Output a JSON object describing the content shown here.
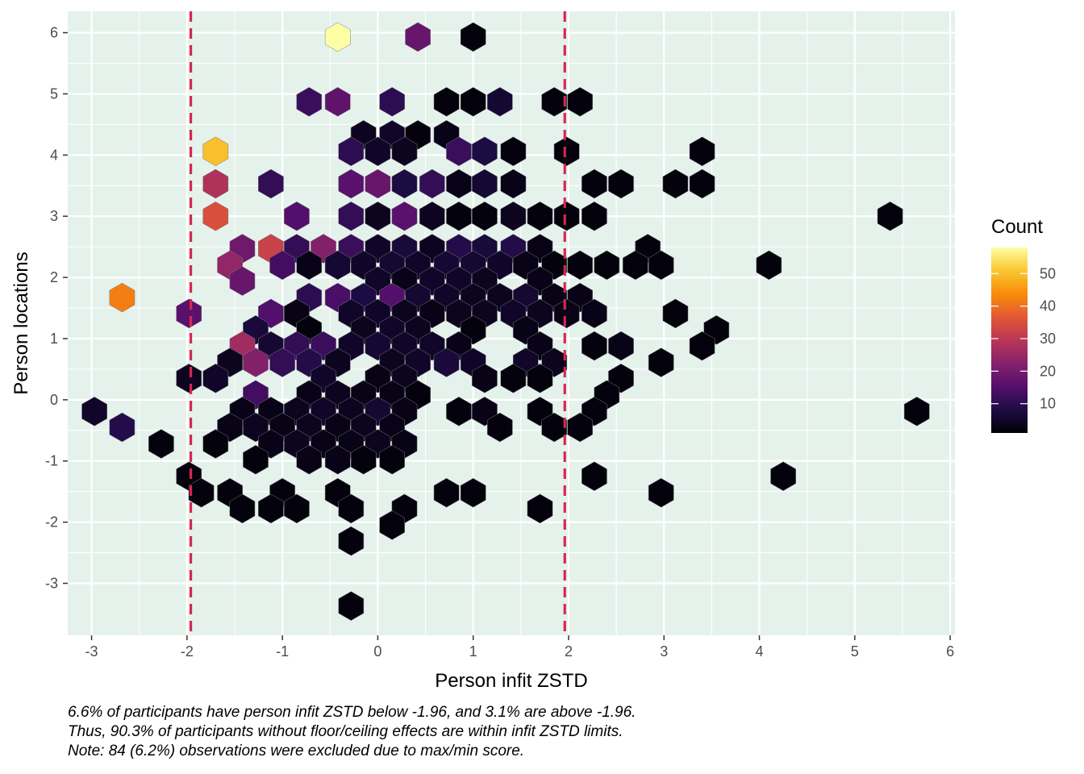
{
  "chart_data": {
    "type": "hexbin",
    "xlabel": "Person infit ZSTD",
    "ylabel": "Person locations",
    "xlim": [
      -3.25,
      6.05
    ],
    "ylim": [
      -3.85,
      6.35
    ],
    "x_ticks": [
      -3,
      -2,
      -1,
      0,
      1,
      2,
      3,
      4,
      5,
      6
    ],
    "y_ticks": [
      -3,
      -2,
      -1,
      0,
      1,
      2,
      3,
      4,
      5,
      6
    ],
    "grid": true,
    "panel_background": "#e5f2ec",
    "reference_lines": {
      "x": [
        -1.96,
        1.96
      ],
      "color": "#d7264f",
      "style": "dashed"
    },
    "legend": {
      "title": "Count",
      "position": "right",
      "min": 1,
      "max": 58,
      "breaks": [
        10,
        20,
        30,
        40,
        50
      ]
    },
    "colormap": "inferno",
    "hexes": [
      {
        "x": -0.42,
        "y": 5.93,
        "count": 58
      },
      {
        "x": 0.42,
        "y": 5.93,
        "count": 18
      },
      {
        "x": 1.0,
        "y": 5.93,
        "count": 2
      },
      {
        "x": -0.72,
        "y": 4.87,
        "count": 12
      },
      {
        "x": -0.42,
        "y": 4.87,
        "count": 17
      },
      {
        "x": 0.15,
        "y": 4.87,
        "count": 10
      },
      {
        "x": 0.72,
        "y": 4.87,
        "count": 2
      },
      {
        "x": 1.0,
        "y": 4.87,
        "count": 2
      },
      {
        "x": 1.28,
        "y": 4.87,
        "count": 6
      },
      {
        "x": 1.85,
        "y": 4.87,
        "count": 2
      },
      {
        "x": 2.12,
        "y": 4.87,
        "count": 2
      },
      {
        "x": -0.15,
        "y": 4.33,
        "count": 4
      },
      {
        "x": 0.15,
        "y": 4.33,
        "count": 5
      },
      {
        "x": 0.42,
        "y": 4.33,
        "count": 2
      },
      {
        "x": 0.72,
        "y": 4.33,
        "count": 3
      },
      {
        "x": -1.7,
        "y": 4.06,
        "count": 50
      },
      {
        "x": -0.28,
        "y": 4.06,
        "count": 10
      },
      {
        "x": 0.0,
        "y": 4.06,
        "count": 5
      },
      {
        "x": 0.28,
        "y": 4.06,
        "count": 4
      },
      {
        "x": 0.85,
        "y": 4.06,
        "count": 12
      },
      {
        "x": 1.12,
        "y": 4.06,
        "count": 8
      },
      {
        "x": 1.42,
        "y": 4.06,
        "count": 2
      },
      {
        "x": 1.98,
        "y": 4.06,
        "count": 2
      },
      {
        "x": 3.4,
        "y": 4.06,
        "count": 2
      },
      {
        "x": -1.7,
        "y": 3.53,
        "count": 28
      },
      {
        "x": -1.12,
        "y": 3.53,
        "count": 11
      },
      {
        "x": -0.28,
        "y": 3.53,
        "count": 16
      },
      {
        "x": 0.0,
        "y": 3.53,
        "count": 18
      },
      {
        "x": 0.28,
        "y": 3.53,
        "count": 8
      },
      {
        "x": 0.57,
        "y": 3.53,
        "count": 11
      },
      {
        "x": 0.85,
        "y": 3.53,
        "count": 3
      },
      {
        "x": 1.12,
        "y": 3.53,
        "count": 6
      },
      {
        "x": 1.42,
        "y": 3.53,
        "count": 3
      },
      {
        "x": 2.27,
        "y": 3.53,
        "count": 2
      },
      {
        "x": 2.55,
        "y": 3.53,
        "count": 2
      },
      {
        "x": 3.12,
        "y": 3.53,
        "count": 2
      },
      {
        "x": 3.4,
        "y": 3.53,
        "count": 2
      },
      {
        "x": -1.7,
        "y": 3.0,
        "count": 35
      },
      {
        "x": -0.85,
        "y": 3.0,
        "count": 15
      },
      {
        "x": -0.28,
        "y": 3.0,
        "count": 11
      },
      {
        "x": 0.0,
        "y": 3.0,
        "count": 4
      },
      {
        "x": 0.28,
        "y": 3.0,
        "count": 16
      },
      {
        "x": 0.57,
        "y": 3.0,
        "count": 4
      },
      {
        "x": 0.85,
        "y": 3.0,
        "count": 2
      },
      {
        "x": 1.12,
        "y": 3.0,
        "count": 2
      },
      {
        "x": 1.42,
        "y": 3.0,
        "count": 4
      },
      {
        "x": 1.7,
        "y": 3.0,
        "count": 2
      },
      {
        "x": 1.98,
        "y": 3.0,
        "count": 2
      },
      {
        "x": 2.27,
        "y": 3.0,
        "count": 2
      },
      {
        "x": 5.37,
        "y": 3.0,
        "count": 2
      },
      {
        "x": -1.42,
        "y": 2.47,
        "count": 19
      },
      {
        "x": -1.12,
        "y": 2.47,
        "count": 32
      },
      {
        "x": -0.85,
        "y": 2.47,
        "count": 11
      },
      {
        "x": -0.57,
        "y": 2.47,
        "count": 22
      },
      {
        "x": -0.28,
        "y": 2.47,
        "count": 12
      },
      {
        "x": 0.0,
        "y": 2.47,
        "count": 5
      },
      {
        "x": 0.28,
        "y": 2.47,
        "count": 7
      },
      {
        "x": 0.57,
        "y": 2.47,
        "count": 4
      },
      {
        "x": 0.85,
        "y": 2.47,
        "count": 9
      },
      {
        "x": 1.12,
        "y": 2.47,
        "count": 7
      },
      {
        "x": 1.42,
        "y": 2.47,
        "count": 9
      },
      {
        "x": 1.7,
        "y": 2.47,
        "count": 3
      },
      {
        "x": 2.83,
        "y": 2.47,
        "count": 2
      },
      {
        "x": -1.55,
        "y": 2.2,
        "count": 24
      },
      {
        "x": -1.0,
        "y": 2.2,
        "count": 13
      },
      {
        "x": -0.72,
        "y": 2.2,
        "count": 3
      },
      {
        "x": -0.42,
        "y": 2.2,
        "count": 6
      },
      {
        "x": -0.15,
        "y": 2.2,
        "count": 5
      },
      {
        "x": 0.15,
        "y": 2.2,
        "count": 6
      },
      {
        "x": 0.42,
        "y": 2.2,
        "count": 5
      },
      {
        "x": 0.72,
        "y": 2.2,
        "count": 6
      },
      {
        "x": 1.0,
        "y": 2.2,
        "count": 6
      },
      {
        "x": 1.28,
        "y": 2.2,
        "count": 5
      },
      {
        "x": 1.55,
        "y": 2.2,
        "count": 3
      },
      {
        "x": 1.85,
        "y": 2.2,
        "count": 2
      },
      {
        "x": 2.12,
        "y": 2.2,
        "count": 2
      },
      {
        "x": 2.4,
        "y": 2.2,
        "count": 2
      },
      {
        "x": 2.7,
        "y": 2.2,
        "count": 2
      },
      {
        "x": 2.97,
        "y": 2.2,
        "count": 2
      },
      {
        "x": 4.1,
        "y": 2.2,
        "count": 2
      },
      {
        "x": -1.42,
        "y": 1.94,
        "count": 18
      },
      {
        "x": 0.0,
        "y": 1.94,
        "count": 5
      },
      {
        "x": 0.28,
        "y": 1.94,
        "count": 3
      },
      {
        "x": 0.57,
        "y": 1.94,
        "count": 5
      },
      {
        "x": 0.85,
        "y": 1.94,
        "count": 5
      },
      {
        "x": 1.12,
        "y": 1.94,
        "count": 4
      },
      {
        "x": 1.7,
        "y": 1.94,
        "count": 3
      },
      {
        "x": -2.68,
        "y": 1.67,
        "count": 42
      },
      {
        "x": -0.72,
        "y": 1.67,
        "count": 10
      },
      {
        "x": -0.42,
        "y": 1.67,
        "count": 14
      },
      {
        "x": -0.15,
        "y": 1.67,
        "count": 8
      },
      {
        "x": 0.15,
        "y": 1.67,
        "count": 15
      },
      {
        "x": 0.42,
        "y": 1.67,
        "count": 6
      },
      {
        "x": 0.72,
        "y": 1.67,
        "count": 5
      },
      {
        "x": 1.0,
        "y": 1.67,
        "count": 4
      },
      {
        "x": 1.28,
        "y": 1.67,
        "count": 4
      },
      {
        "x": 1.55,
        "y": 1.67,
        "count": 6
      },
      {
        "x": 1.85,
        "y": 1.67,
        "count": 3
      },
      {
        "x": 2.12,
        "y": 1.67,
        "count": 3
      },
      {
        "x": -1.98,
        "y": 1.41,
        "count": 16
      },
      {
        "x": -1.12,
        "y": 1.41,
        "count": 15
      },
      {
        "x": -0.85,
        "y": 1.41,
        "count": 3
      },
      {
        "x": -0.28,
        "y": 1.41,
        "count": 5
      },
      {
        "x": 0.0,
        "y": 1.41,
        "count": 5
      },
      {
        "x": 0.28,
        "y": 1.41,
        "count": 4
      },
      {
        "x": 0.57,
        "y": 1.41,
        "count": 3
      },
      {
        "x": 0.85,
        "y": 1.41,
        "count": 4
      },
      {
        "x": 1.12,
        "y": 1.41,
        "count": 4
      },
      {
        "x": 1.42,
        "y": 1.41,
        "count": 5
      },
      {
        "x": 1.7,
        "y": 1.41,
        "count": 4
      },
      {
        "x": 1.98,
        "y": 1.41,
        "count": 3
      },
      {
        "x": 2.27,
        "y": 1.41,
        "count": 3
      },
      {
        "x": 3.12,
        "y": 1.41,
        "count": 2
      },
      {
        "x": -1.28,
        "y": 1.14,
        "count": 7
      },
      {
        "x": -0.72,
        "y": 1.14,
        "count": 2
      },
      {
        "x": -0.15,
        "y": 1.14,
        "count": 4
      },
      {
        "x": 0.15,
        "y": 1.14,
        "count": 5
      },
      {
        "x": 0.42,
        "y": 1.14,
        "count": 4
      },
      {
        "x": 1.0,
        "y": 1.14,
        "count": 2
      },
      {
        "x": 1.55,
        "y": 1.14,
        "count": 3
      },
      {
        "x": 3.55,
        "y": 1.14,
        "count": 2
      },
      {
        "x": -1.42,
        "y": 0.88,
        "count": 26
      },
      {
        "x": -1.12,
        "y": 0.88,
        "count": 6
      },
      {
        "x": -0.85,
        "y": 0.88,
        "count": 11
      },
      {
        "x": -0.57,
        "y": 0.88,
        "count": 12
      },
      {
        "x": -0.28,
        "y": 0.88,
        "count": 5
      },
      {
        "x": 0.0,
        "y": 0.88,
        "count": 6
      },
      {
        "x": 0.28,
        "y": 0.88,
        "count": 5
      },
      {
        "x": 0.57,
        "y": 0.88,
        "count": 5
      },
      {
        "x": 0.85,
        "y": 0.88,
        "count": 3
      },
      {
        "x": 1.7,
        "y": 0.88,
        "count": 3
      },
      {
        "x": 2.27,
        "y": 0.88,
        "count": 2
      },
      {
        "x": 2.55,
        "y": 0.88,
        "count": 3
      },
      {
        "x": 3.4,
        "y": 0.88,
        "count": 2
      },
      {
        "x": -1.55,
        "y": 0.61,
        "count": 4
      },
      {
        "x": -1.28,
        "y": 0.61,
        "count": 22
      },
      {
        "x": -1.0,
        "y": 0.61,
        "count": 11
      },
      {
        "x": -0.72,
        "y": 0.61,
        "count": 9
      },
      {
        "x": -0.42,
        "y": 0.61,
        "count": 4
      },
      {
        "x": 0.15,
        "y": 0.61,
        "count": 4
      },
      {
        "x": 0.42,
        "y": 0.61,
        "count": 5
      },
      {
        "x": 0.72,
        "y": 0.61,
        "count": 7
      },
      {
        "x": 1.0,
        "y": 0.61,
        "count": 5
      },
      {
        "x": 1.55,
        "y": 0.61,
        "count": 5
      },
      {
        "x": 1.85,
        "y": 0.61,
        "count": 4
      },
      {
        "x": 2.97,
        "y": 0.61,
        "count": 2
      },
      {
        "x": -1.98,
        "y": 0.35,
        "count": 4
      },
      {
        "x": -1.7,
        "y": 0.35,
        "count": 5
      },
      {
        "x": -0.57,
        "y": 0.35,
        "count": 5
      },
      {
        "x": 0.0,
        "y": 0.35,
        "count": 3
      },
      {
        "x": 0.28,
        "y": 0.35,
        "count": 4
      },
      {
        "x": 1.12,
        "y": 0.35,
        "count": 3
      },
      {
        "x": 1.42,
        "y": 0.35,
        "count": 2
      },
      {
        "x": 1.7,
        "y": 0.35,
        "count": 2
      },
      {
        "x": 2.55,
        "y": 0.35,
        "count": 2
      },
      {
        "x": -1.28,
        "y": 0.08,
        "count": 13
      },
      {
        "x": -0.72,
        "y": 0.08,
        "count": 3
      },
      {
        "x": -0.42,
        "y": 0.08,
        "count": 4
      },
      {
        "x": -0.15,
        "y": 0.08,
        "count": 3
      },
      {
        "x": 0.15,
        "y": 0.08,
        "count": 3
      },
      {
        "x": 0.42,
        "y": 0.08,
        "count": 2
      },
      {
        "x": 2.4,
        "y": 0.08,
        "count": 2
      },
      {
        "x": -2.97,
        "y": -0.19,
        "count": 5
      },
      {
        "x": -1.42,
        "y": -0.19,
        "count": 3
      },
      {
        "x": -1.12,
        "y": -0.19,
        "count": 3
      },
      {
        "x": -0.85,
        "y": -0.19,
        "count": 4
      },
      {
        "x": -0.57,
        "y": -0.19,
        "count": 5
      },
      {
        "x": -0.28,
        "y": -0.19,
        "count": 4
      },
      {
        "x": 0.0,
        "y": -0.19,
        "count": 6
      },
      {
        "x": 0.28,
        "y": -0.19,
        "count": 3
      },
      {
        "x": 0.85,
        "y": -0.19,
        "count": 2
      },
      {
        "x": 1.12,
        "y": -0.19,
        "count": 3
      },
      {
        "x": 1.7,
        "y": -0.19,
        "count": 2
      },
      {
        "x": 2.27,
        "y": -0.19,
        "count": 2
      },
      {
        "x": 5.65,
        "y": -0.19,
        "count": 2
      },
      {
        "x": -2.68,
        "y": -0.45,
        "count": 9
      },
      {
        "x": -1.55,
        "y": -0.45,
        "count": 3
      },
      {
        "x": -1.28,
        "y": -0.45,
        "count": 4
      },
      {
        "x": -1.0,
        "y": -0.45,
        "count": 3
      },
      {
        "x": -0.72,
        "y": -0.45,
        "count": 4
      },
      {
        "x": -0.42,
        "y": -0.45,
        "count": 3
      },
      {
        "x": -0.15,
        "y": -0.45,
        "count": 4
      },
      {
        "x": 0.15,
        "y": -0.45,
        "count": 3
      },
      {
        "x": 1.28,
        "y": -0.45,
        "count": 2
      },
      {
        "x": 1.85,
        "y": -0.45,
        "count": 2
      },
      {
        "x": 2.12,
        "y": -0.45,
        "count": 2
      },
      {
        "x": -2.27,
        "y": -0.72,
        "count": 2
      },
      {
        "x": -1.7,
        "y": -0.72,
        "count": 2
      },
      {
        "x": -1.12,
        "y": -0.72,
        "count": 3
      },
      {
        "x": -0.85,
        "y": -0.72,
        "count": 4
      },
      {
        "x": -0.57,
        "y": -0.72,
        "count": 3
      },
      {
        "x": -0.28,
        "y": -0.72,
        "count": 3
      },
      {
        "x": 0.0,
        "y": -0.72,
        "count": 4
      },
      {
        "x": 0.28,
        "y": -0.72,
        "count": 3
      },
      {
        "x": -1.28,
        "y": -0.98,
        "count": 2
      },
      {
        "x": -0.72,
        "y": -0.98,
        "count": 3
      },
      {
        "x": -0.42,
        "y": -0.98,
        "count": 3
      },
      {
        "x": -0.15,
        "y": -0.98,
        "count": 2
      },
      {
        "x": 0.15,
        "y": -0.98,
        "count": 2
      },
      {
        "x": -1.98,
        "y": -1.25,
        "count": 2
      },
      {
        "x": 2.27,
        "y": -1.25,
        "count": 2
      },
      {
        "x": 4.25,
        "y": -1.25,
        "count": 2
      },
      {
        "x": -1.85,
        "y": -1.52,
        "count": 2
      },
      {
        "x": -1.55,
        "y": -1.52,
        "count": 2
      },
      {
        "x": -1.0,
        "y": -1.52,
        "count": 2
      },
      {
        "x": -0.42,
        "y": -1.52,
        "count": 2
      },
      {
        "x": 0.72,
        "y": -1.52,
        "count": 2
      },
      {
        "x": 1.0,
        "y": -1.52,
        "count": 2
      },
      {
        "x": 2.97,
        "y": -1.52,
        "count": 2
      },
      {
        "x": -1.42,
        "y": -1.78,
        "count": 2
      },
      {
        "x": -1.12,
        "y": -1.78,
        "count": 2
      },
      {
        "x": -0.85,
        "y": -1.78,
        "count": 2
      },
      {
        "x": -0.28,
        "y": -1.78,
        "count": 2
      },
      {
        "x": 0.28,
        "y": -1.78,
        "count": 2
      },
      {
        "x": 1.7,
        "y": -1.78,
        "count": 2
      },
      {
        "x": 0.15,
        "y": -2.05,
        "count": 2
      },
      {
        "x": -0.28,
        "y": -2.31,
        "count": 2
      },
      {
        "x": -0.28,
        "y": -3.37,
        "count": 2
      }
    ]
  },
  "caption": {
    "line1": "6.6% of participants have person infit ZSTD below -1.96, and 3.1% are above -1.96.",
    "line2": "Thus, 90.3% of participants without floor/ceiling effects are within infit ZSTD limits.",
    "line3": "Note: 84 (6.2%) observations were excluded due to max/min score."
  }
}
